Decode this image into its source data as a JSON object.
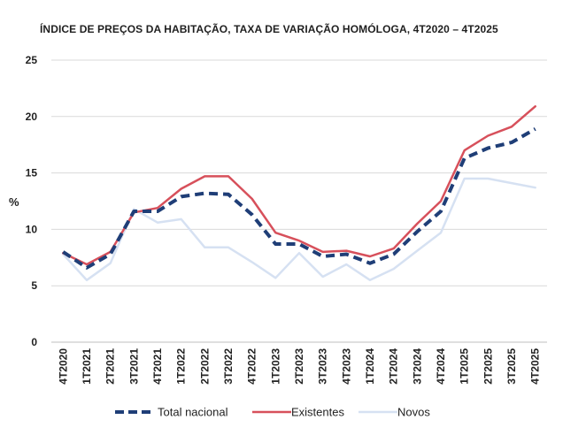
{
  "chart_data": {
    "type": "line",
    "title": "ÍNDICE DE PREÇOS DA HABITAÇÃO, TAXA DE VARIAÇÃO HOMÓLOGA, 4T2020 – 4T2025",
    "xlabel": "",
    "ylabel": "%",
    "ylim": [
      0,
      25
    ],
    "yticks": [
      "0",
      "5",
      "10",
      "15",
      "20",
      "25"
    ],
    "grid": true,
    "legend": "bottom",
    "categories": [
      "4T2020",
      "1T2021",
      "2T2021",
      "3T2021",
      "4T2021",
      "1T2022",
      "2T2022",
      "3T2022",
      "4T2022",
      "1T2023",
      "2T2023",
      "3T2023",
      "4T2023",
      "1T2024",
      "2T2024",
      "3T2024",
      "4T2024",
      "1T2025",
      "2T2025",
      "3T2025",
      "4T2025"
    ],
    "series": [
      {
        "name": "Total nacional",
        "color": "#1f3e77",
        "style": "dashed",
        "values": [
          8.0,
          6.6,
          7.8,
          11.6,
          11.6,
          12.9,
          13.2,
          13.1,
          11.3,
          8.7,
          8.7,
          7.6,
          7.8,
          7.0,
          7.8,
          9.8,
          11.6,
          16.3,
          17.2,
          17.7,
          18.9
        ]
      },
      {
        "name": "Existentes",
        "color": "#d7505b",
        "style": "solid",
        "values": [
          7.9,
          6.9,
          8.0,
          11.5,
          11.9,
          13.6,
          14.7,
          14.7,
          12.7,
          9.7,
          9.0,
          8.0,
          8.1,
          7.6,
          8.3,
          10.5,
          12.5,
          17.0,
          18.3,
          19.1,
          20.9
        ]
      },
      {
        "name": "Novos",
        "color": "#d6e1f2",
        "style": "solid",
        "values": [
          7.8,
          5.5,
          7.0,
          11.8,
          10.6,
          10.9,
          8.4,
          8.4,
          7.1,
          5.7,
          7.9,
          5.8,
          6.9,
          5.5,
          6.5,
          8.1,
          9.7,
          14.5,
          14.5,
          14.1,
          13.7
        ]
      }
    ]
  }
}
